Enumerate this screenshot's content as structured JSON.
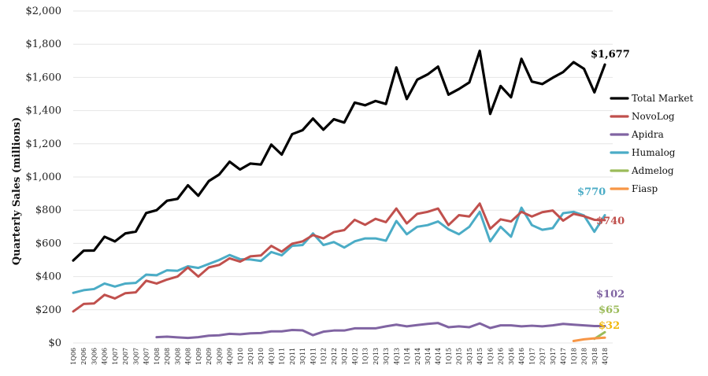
{
  "colors": {
    "total_market": "#000000",
    "novolog": "#c0504d",
    "apidra": "#8064a2",
    "humalog": "#4bacc6",
    "admelog": "#9bbb59",
    "fiasp": "#f79646",
    "fiasp_label": "#f2b90f"
  },
  "chart_data": {
    "type": "line",
    "title": "",
    "xlabel": "",
    "ylabel": "Quarterly Sales (millions)",
    "ylim": [
      0,
      2000
    ],
    "yticks": [
      "$0",
      "$200",
      "$400",
      "$600",
      "$800",
      "$1,000",
      "$1,200",
      "$1,400",
      "$1,600",
      "$1,800",
      "$2,000"
    ],
    "grid": true,
    "legend_position": "right",
    "x": [
      "1Q06",
      "2Q06",
      "3Q06",
      "4Q06",
      "1Q07",
      "2Q07",
      "3Q07",
      "4Q07",
      "1Q08",
      "2Q08",
      "3Q08",
      "4Q08",
      "1Q09",
      "2Q09",
      "3Q09",
      "4Q09",
      "1Q10",
      "2Q10",
      "3Q10",
      "4Q10",
      "1Q11",
      "2Q11",
      "3Q11",
      "4Q11",
      "1Q12",
      "2Q12",
      "3Q12",
      "4Q12",
      "1Q13",
      "2Q13",
      "3Q13",
      "4Q13",
      "1Q14",
      "2Q14",
      "3Q14",
      "4Q14",
      "1Q15",
      "2Q15",
      "3Q15",
      "4Q15",
      "1Q16",
      "2Q16",
      "3Q16",
      "4Q16",
      "1Q17",
      "2Q17",
      "3Q17",
      "4Q17",
      "1Q18",
      "2Q18",
      "3Q18",
      "4Q18"
    ],
    "series": [
      {
        "name": "Total Market",
        "color_key": "total_market",
        "end_label": "$1,677",
        "values": [
          497,
          556,
          557,
          640,
          612,
          660,
          671,
          783,
          800,
          857,
          868,
          950,
          887,
          975,
          1015,
          1092,
          1045,
          1081,
          1075,
          1195,
          1135,
          1258,
          1282,
          1352,
          1285,
          1348,
          1328,
          1448,
          1432,
          1458,
          1440,
          1660,
          1470,
          1586,
          1618,
          1665,
          1496,
          1530,
          1570,
          1760,
          1380,
          1548,
          1480,
          1712,
          1575,
          1560,
          1598,
          1632,
          1692,
          1652,
          1510,
          1677
        ]
      },
      {
        "name": "NovoLog",
        "color_key": "novolog",
        "end_label": "$740",
        "values": [
          190,
          235,
          238,
          290,
          268,
          300,
          305,
          375,
          358,
          382,
          400,
          455,
          400,
          455,
          470,
          510,
          490,
          522,
          527,
          585,
          550,
          598,
          612,
          650,
          630,
          668,
          680,
          742,
          712,
          748,
          728,
          810,
          720,
          778,
          790,
          810,
          710,
          770,
          762,
          840,
          688,
          745,
          732,
          790,
          762,
          788,
          798,
          737,
          778,
          764,
          742,
          740
        ]
      },
      {
        "name": "Apidra",
        "color_key": "apidra",
        "end_label": "$102",
        "values": [
          null,
          null,
          null,
          null,
          null,
          null,
          null,
          null,
          35,
          38,
          34,
          30,
          35,
          44,
          46,
          55,
          52,
          58,
          60,
          70,
          70,
          78,
          76,
          47,
          68,
          75,
          75,
          88,
          88,
          88,
          100,
          110,
          100,
          108,
          115,
          120,
          95,
          100,
          95,
          118,
          90,
          106,
          106,
          100,
          104,
          100,
          106,
          115,
          110,
          106,
          102,
          102
        ]
      },
      {
        "name": "Humalog",
        "color_key": "humalog",
        "end_label": "$770",
        "values": [
          302,
          318,
          325,
          358,
          340,
          358,
          362,
          412,
          408,
          438,
          435,
          462,
          452,
          476,
          500,
          530,
          505,
          503,
          494,
          548,
          528,
          585,
          590,
          660,
          590,
          608,
          575,
          612,
          630,
          630,
          616,
          735,
          655,
          700,
          710,
          732,
          685,
          655,
          700,
          790,
          612,
          700,
          640,
          815,
          710,
          682,
          692,
          782,
          790,
          768,
          670,
          770
        ]
      },
      {
        "name": "Admelog",
        "color_key": "admelog",
        "end_label": "$65",
        "values": [
          null,
          null,
          null,
          null,
          null,
          null,
          null,
          null,
          null,
          null,
          null,
          null,
          null,
          null,
          null,
          null,
          null,
          null,
          null,
          null,
          null,
          null,
          null,
          null,
          null,
          null,
          null,
          null,
          null,
          null,
          null,
          null,
          null,
          null,
          null,
          null,
          null,
          null,
          null,
          null,
          null,
          null,
          null,
          null,
          null,
          null,
          null,
          null,
          null,
          null,
          25,
          65
        ]
      },
      {
        "name": "Fiasp",
        "color_key": "fiasp",
        "end_label": "$32",
        "values": [
          null,
          null,
          null,
          null,
          null,
          null,
          null,
          null,
          null,
          null,
          null,
          null,
          null,
          null,
          null,
          null,
          null,
          null,
          null,
          null,
          null,
          null,
          null,
          null,
          null,
          null,
          null,
          null,
          null,
          null,
          null,
          null,
          null,
          null,
          null,
          null,
          null,
          null,
          null,
          null,
          null,
          null,
          null,
          null,
          null,
          null,
          null,
          null,
          12,
          22,
          28,
          32
        ]
      }
    ]
  }
}
